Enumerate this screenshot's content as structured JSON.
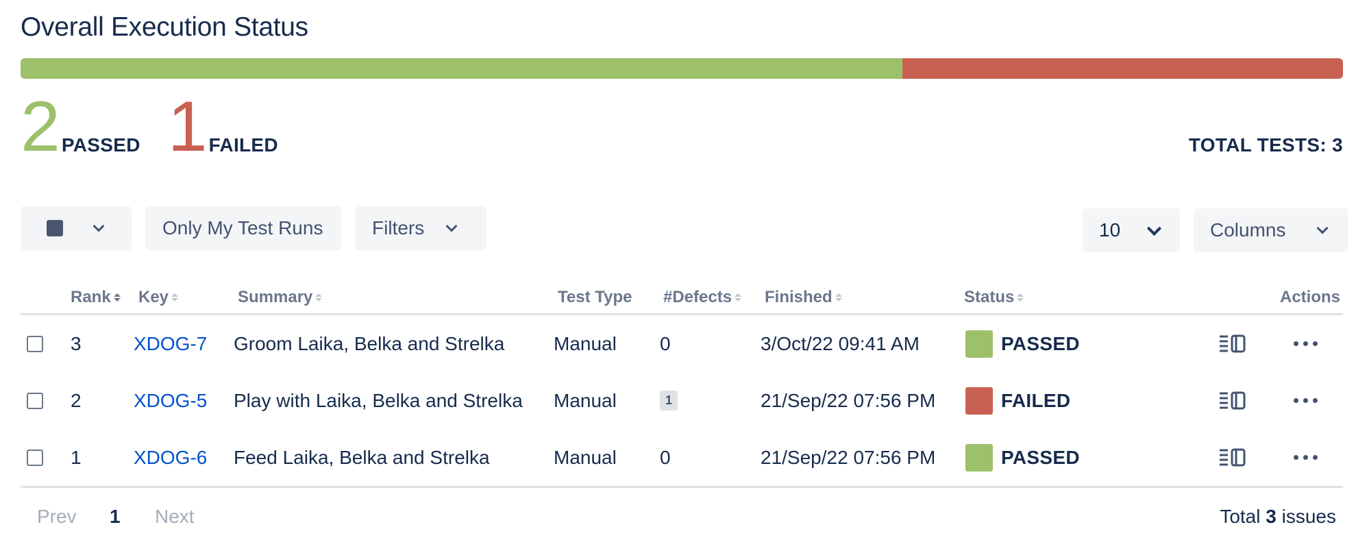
{
  "header": {
    "title": "Overall Execution Status"
  },
  "progress": {
    "passed_fraction": 0.6667,
    "failed_fraction": 0.3333,
    "passed_color": "#9dc06b",
    "failed_color": "#c96152"
  },
  "summary": {
    "passed_count": "2",
    "passed_label": "PASSED",
    "failed_count": "1",
    "failed_label": "FAILED",
    "total_tests": "TOTAL TESTS: 3"
  },
  "toolbar": {
    "only_mine_label": "Only My Test Runs",
    "filters_label": "Filters",
    "page_size": "10",
    "columns_label": "Columns",
    "select_icon": "square-checkbox-icon",
    "dropdown_icon": "chevron-down-icon"
  },
  "table": {
    "headers": {
      "rank": "Rank",
      "key": "Key",
      "summary": "Summary",
      "test_type": "Test Type",
      "defects": "#Defects",
      "finished": "Finished",
      "status": "Status",
      "actions": "Actions"
    },
    "rows": [
      {
        "rank": "3",
        "key": "XDOG-7",
        "summary": "Groom Laika, Belka and Strelka",
        "test_type": "Manual",
        "defects": "0",
        "defects_badge": false,
        "finished": "3/Oct/22 09:41 AM",
        "status": "PASSED",
        "status_color": "#9dc06b"
      },
      {
        "rank": "2",
        "key": "XDOG-5",
        "summary": "Play with Laika, Belka and Strelka",
        "test_type": "Manual",
        "defects": "1",
        "defects_badge": true,
        "finished": "21/Sep/22 07:56 PM",
        "status": "FAILED",
        "status_color": "#c96152"
      },
      {
        "rank": "1",
        "key": "XDOG-6",
        "summary": "Feed Laika, Belka and Strelka",
        "test_type": "Manual",
        "defects": "0",
        "defects_badge": false,
        "finished": "21/Sep/22 07:56 PM",
        "status": "PASSED",
        "status_color": "#9dc06b"
      }
    ],
    "action_icons": [
      "execution-details-icon",
      "more-actions-icon"
    ]
  },
  "pagination": {
    "prev_label": "Prev",
    "current_page": "1",
    "next_label": "Next",
    "total_prefix": "Total",
    "total_count": "3",
    "total_suffix": "issues"
  }
}
